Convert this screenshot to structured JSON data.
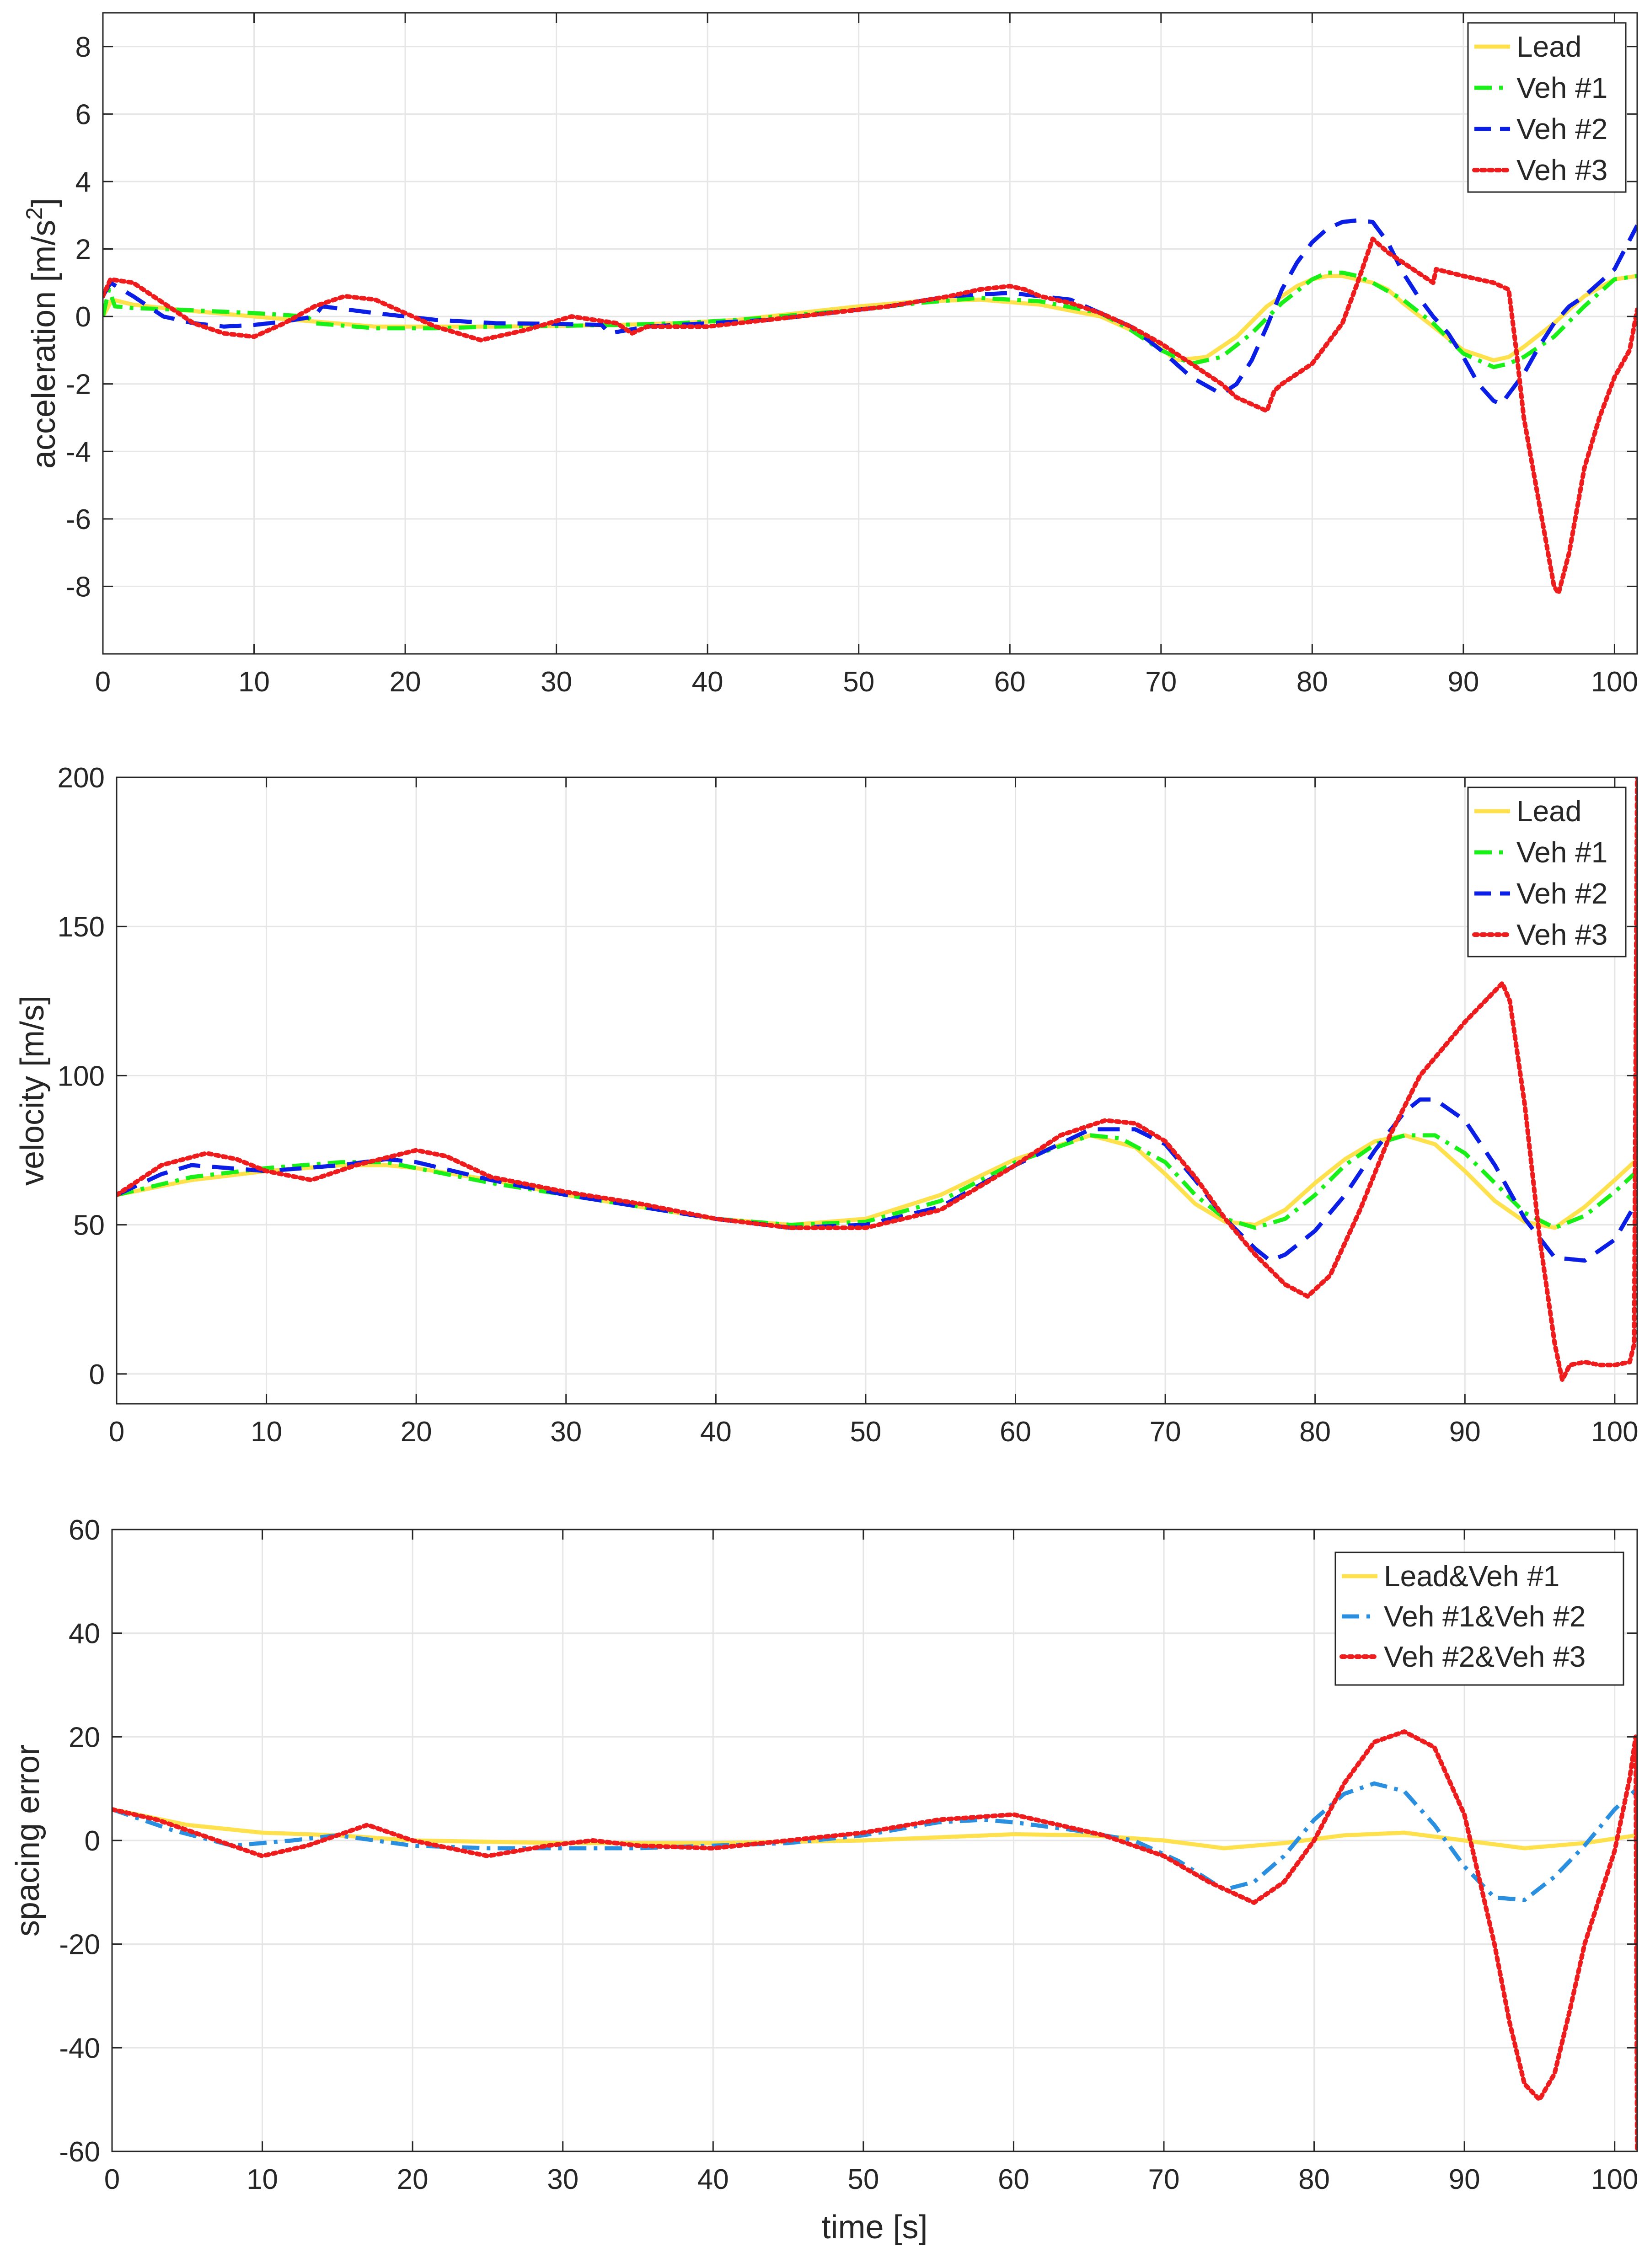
{
  "chart_data": [
    {
      "type": "line",
      "id": "acc",
      "ylabel": "acceleration [m/s²]",
      "ylabel_parts": {
        "base": "acceleration [m/s",
        "sup": "2",
        "close": "]"
      },
      "xlabel": "",
      "xlim": [
        0,
        101.5
      ],
      "ylim": [
        -10,
        9
      ],
      "grid": true,
      "legend_position": "top-right",
      "xticks": [
        0,
        10,
        20,
        30,
        40,
        50,
        60,
        70,
        80,
        90,
        100
      ],
      "yticks": [
        8,
        6,
        4,
        2,
        0,
        -2,
        -4,
        -6,
        -8
      ],
      "series": [
        {
          "name": "Lead",
          "color": "#ffe14d",
          "dash": "solid",
          "x": [
            0,
            0.6,
            2,
            5,
            10,
            14,
            18,
            22,
            26,
            30,
            34,
            38,
            42,
            46,
            50,
            54,
            58,
            62,
            66,
            69,
            71,
            73,
            75,
            77,
            79,
            80,
            81,
            82,
            83,
            84,
            85,
            86,
            88,
            90,
            92,
            93,
            94,
            96,
            98,
            100,
            101.5
          ],
          "y": [
            0,
            0.5,
            0.35,
            0.2,
            0.0,
            -0.15,
            -0.3,
            -0.3,
            -0.3,
            -0.28,
            -0.25,
            -0.2,
            -0.1,
            0.1,
            0.3,
            0.45,
            0.5,
            0.35,
            0.0,
            -0.6,
            -1.3,
            -1.2,
            -0.6,
            0.3,
            0.9,
            1.1,
            1.2,
            1.2,
            1.1,
            1.0,
            0.8,
            0.4,
            -0.3,
            -1.0,
            -1.3,
            -1.2,
            -0.9,
            -0.2,
            0.6,
            1.1,
            1.2
          ]
        },
        {
          "name": "Veh #1",
          "color": "#18f018",
          "dash": "dashdot",
          "x": [
            0,
            0.4,
            0.8,
            2,
            5,
            10,
            13.5,
            14,
            18,
            22,
            26,
            30,
            34,
            38,
            42,
            46,
            50,
            54,
            58,
            62,
            66,
            68,
            70,
            72,
            74,
            76,
            78,
            80,
            81,
            82,
            83,
            84,
            86,
            88,
            90,
            92,
            93,
            94,
            96,
            98,
            100,
            101.5
          ],
          "y": [
            0,
            0.8,
            0.3,
            0.25,
            0.2,
            0.1,
            0.0,
            -0.2,
            -0.35,
            -0.35,
            -0.3,
            -0.28,
            -0.25,
            -0.2,
            -0.1,
            0.05,
            0.2,
            0.4,
            0.55,
            0.45,
            0.1,
            -0.4,
            -1.0,
            -1.4,
            -1.2,
            -0.5,
            0.4,
            1.1,
            1.3,
            1.3,
            1.2,
            1.0,
            0.5,
            -0.2,
            -1.1,
            -1.5,
            -1.4,
            -1.2,
            -0.6,
            0.3,
            1.1,
            1.2
          ]
        },
        {
          "name": "Veh #2",
          "color": "#0a1ee6",
          "dash": "dashed",
          "x": [
            0,
            0.5,
            2,
            4,
            6,
            8,
            10,
            12,
            14,
            14.5,
            18,
            22,
            26,
            30,
            33,
            33.5,
            36,
            40,
            44,
            48,
            52,
            56,
            60,
            64,
            66,
            68,
            70,
            72,
            74,
            75,
            76,
            77,
            78,
            79,
            80,
            81,
            82,
            83,
            84,
            85,
            86,
            87,
            88,
            89,
            90,
            91,
            92,
            92.5,
            93,
            94,
            95,
            96,
            97,
            98,
            100,
            101.5
          ],
          "y": [
            0.6,
            1.0,
            0.6,
            0.0,
            -0.2,
            -0.3,
            -0.25,
            -0.15,
            0.0,
            0.3,
            0.1,
            -0.1,
            -0.2,
            -0.22,
            -0.25,
            -0.5,
            -0.3,
            -0.2,
            -0.1,
            0.1,
            0.3,
            0.6,
            0.7,
            0.5,
            0.1,
            -0.3,
            -1.0,
            -1.8,
            -2.3,
            -2.0,
            -1.3,
            -0.3,
            0.8,
            1.6,
            2.2,
            2.6,
            2.8,
            2.85,
            2.8,
            2.2,
            1.3,
            0.6,
            0.0,
            -0.5,
            -1.2,
            -2.0,
            -2.5,
            -2.6,
            -2.3,
            -1.7,
            -0.9,
            -0.2,
            0.3,
            0.6,
            1.4,
            2.7
          ]
        },
        {
          "name": "Veh #3",
          "color": "#ee1c1c",
          "dash": "dotted",
          "x": [
            0,
            0.5,
            2,
            4,
            6,
            8,
            10,
            12,
            14,
            16,
            18,
            20,
            22,
            25,
            28,
            31,
            34,
            35,
            36,
            40,
            44,
            48,
            52,
            56,
            58,
            60,
            61,
            62,
            64,
            66,
            68,
            70,
            72,
            74,
            75,
            76,
            77,
            77.5,
            78,
            80,
            82,
            83,
            84,
            85,
            86,
            88,
            88.2,
            90,
            92,
            93,
            93.5,
            94,
            95,
            96,
            96.3,
            97,
            98,
            99,
            100,
            101,
            101.5
          ],
          "y": [
            0.6,
            1.1,
            1.0,
            0.4,
            -0.2,
            -0.5,
            -0.6,
            -0.2,
            0.3,
            0.6,
            0.5,
            0.1,
            -0.3,
            -0.7,
            -0.4,
            0.0,
            -0.2,
            -0.5,
            -0.3,
            -0.3,
            -0.1,
            0.1,
            0.3,
            0.6,
            0.8,
            0.9,
            0.8,
            0.6,
            0.4,
            0.1,
            -0.3,
            -0.8,
            -1.4,
            -2.0,
            -2.4,
            -2.6,
            -2.8,
            -2.2,
            -2.0,
            -1.4,
            -0.2,
            1.0,
            2.3,
            1.9,
            1.6,
            1.0,
            1.4,
            1.2,
            1.0,
            0.8,
            -1.0,
            -3.0,
            -5.5,
            -8.0,
            -8.2,
            -7.0,
            -4.5,
            -3.0,
            -1.8,
            -1.0,
            0.2
          ]
        }
      ]
    },
    {
      "type": "line",
      "id": "vel",
      "ylabel": "velocity [m/s]",
      "xlabel": "",
      "xlim": [
        0,
        101.5
      ],
      "ylim": [
        -10,
        200
      ],
      "grid": true,
      "legend_position": "top-right",
      "xticks": [
        0,
        10,
        20,
        30,
        40,
        50,
        60,
        70,
        80,
        90,
        100
      ],
      "yticks": [
        200,
        150,
        100,
        50,
        0
      ],
      "series": [
        {
          "name": "Lead",
          "color": "#ffe14d",
          "dash": "solid",
          "x": [
            0,
            5,
            10,
            15,
            18,
            20,
            25,
            30,
            35,
            40,
            45,
            50,
            55,
            60,
            65,
            68,
            70,
            72,
            74,
            76,
            78,
            80,
            82,
            84,
            86,
            88,
            90,
            92,
            94,
            96,
            98,
            100,
            101.5
          ],
          "y": [
            60,
            65,
            68,
            70,
            70,
            69,
            65,
            60,
            56,
            52,
            50,
            52,
            60,
            72,
            80,
            76,
            67,
            57,
            51,
            50,
            55,
            64,
            72,
            78,
            80,
            77,
            68,
            58,
            51,
            49,
            56,
            65,
            72
          ]
        },
        {
          "name": "Veh #1",
          "color": "#18f018",
          "dash": "dashdot",
          "x": [
            0,
            5,
            10,
            15,
            18,
            20,
            25,
            30,
            35,
            40,
            45,
            50,
            55,
            60,
            65,
            67,
            70,
            72,
            74,
            76,
            78,
            80,
            82,
            84,
            86,
            88,
            90,
            92,
            94,
            96,
            98,
            100,
            101.5
          ],
          "y": [
            60,
            66,
            69,
            71,
            71,
            69,
            64,
            60,
            56,
            52,
            50,
            51,
            58,
            71,
            80,
            79,
            71,
            60,
            52,
            49,
            52,
            60,
            70,
            77,
            80,
            80,
            74,
            64,
            54,
            49,
            53,
            61,
            68
          ]
        },
        {
          "name": "Veh #2",
          "color": "#0a1ee6",
          "dash": "dashed",
          "x": [
            0,
            3,
            5,
            10,
            15,
            18,
            20,
            25,
            30,
            35,
            40,
            45,
            50,
            55,
            60,
            65,
            68,
            70,
            72,
            74,
            76,
            77,
            78,
            80,
            82,
            84,
            86,
            87,
            88,
            90,
            92,
            94,
            96,
            98,
            100,
            101.5
          ],
          "y": [
            60,
            67,
            70,
            68,
            70,
            72,
            71,
            65,
            60,
            56,
            52,
            49,
            50,
            56,
            70,
            82,
            82,
            77,
            65,
            52,
            42,
            38,
            40,
            48,
            60,
            75,
            88,
            92,
            92,
            85,
            70,
            52,
            39,
            38,
            45,
            58
          ]
        },
        {
          "name": "Veh #3",
          "color": "#ee1c1c",
          "dash": "dotted",
          "x": [
            0,
            3,
            6,
            8,
            10,
            13,
            16,
            20,
            22,
            25,
            30,
            35,
            40,
            45,
            50,
            55,
            60,
            63,
            66,
            68,
            70,
            72,
            74,
            76,
            78,
            79.5,
            81,
            83,
            85,
            87,
            90,
            92.5,
            93,
            94,
            95,
            96,
            96.5,
            97,
            98,
            99,
            100,
            101,
            101.3,
            101.5
          ],
          "y": [
            60,
            70,
            74,
            72,
            68,
            65,
            70,
            75,
            73,
            66,
            61,
            57,
            52,
            49,
            49,
            55,
            70,
            80,
            85,
            84,
            78,
            66,
            52,
            40,
            30,
            26,
            33,
            55,
            80,
            100,
            118,
            131,
            125,
            90,
            45,
            10,
            -2,
            3,
            4,
            3,
            3,
            4,
            10,
            200
          ]
        }
      ]
    },
    {
      "type": "line",
      "id": "spacing",
      "ylabel": "spacing error",
      "xlabel": "time [s]",
      "xlim": [
        0,
        101.5
      ],
      "ylim": [
        -60,
        60
      ],
      "grid": true,
      "legend_position": "top-right",
      "xticks": [
        0,
        10,
        20,
        30,
        40,
        50,
        60,
        70,
        80,
        90,
        100
      ],
      "yticks": [
        60,
        40,
        20,
        0,
        -20,
        -40,
        -60
      ],
      "series": [
        {
          "name": "Lead&Veh #1",
          "color": "#ffe14d",
          "dash": "solid",
          "x": [
            0,
            5,
            10,
            15,
            20,
            30,
            40,
            50,
            60,
            65,
            70,
            74,
            78,
            82,
            86,
            90,
            94,
            98,
            101.5
          ],
          "y": [
            6,
            3,
            1.5,
            1,
            0,
            -0.5,
            -0.5,
            0,
            1.2,
            1,
            0,
            -1.5,
            -0.5,
            1,
            1.5,
            0,
            -1.5,
            -0.5,
            1
          ]
        },
        {
          "name": "Veh #1&Veh #2",
          "color": "#2b8fe0",
          "dash": "dashdot",
          "x": [
            0,
            4,
            8,
            12,
            15,
            20,
            25,
            30,
            35,
            40,
            45,
            50,
            55,
            58,
            60,
            64,
            68,
            71,
            74,
            76,
            78,
            80,
            82,
            84,
            86,
            88,
            90,
            92,
            94,
            96,
            98,
            100,
            101.5
          ],
          "y": [
            6,
            2,
            -1,
            0,
            1,
            -1,
            -1.5,
            -1.5,
            -1.5,
            -1,
            -0.5,
            1,
            3.5,
            4,
            3.5,
            2,
            0,
            -4,
            -9.5,
            -8,
            -3,
            4,
            9,
            11,
            9.5,
            3,
            -5,
            -11,
            -11.5,
            -7,
            -1,
            6,
            10
          ]
        },
        {
          "name": "Veh #2&Veh #3",
          "color": "#ee1c1c",
          "dash": "dotted",
          "x": [
            0,
            3,
            6,
            10,
            13,
            17,
            20,
            25,
            29,
            32,
            35,
            40,
            45,
            50,
            55,
            60,
            63,
            66,
            70,
            73,
            76,
            78,
            80,
            82,
            84,
            86,
            88,
            90,
            92,
            93,
            94,
            95,
            96,
            97,
            98,
            100,
            101,
            101.4,
            101.5
          ],
          "y": [
            6,
            4,
            1,
            -3,
            -1,
            3,
            0,
            -3,
            -1,
            0,
            -1,
            -1.5,
            0,
            1.5,
            4,
            5,
            3,
            1,
            -3,
            -8,
            -12,
            -8,
            0,
            11,
            19,
            21,
            18,
            5,
            -20,
            -35,
            -47,
            -50,
            -45,
            -33,
            -20,
            -2,
            12,
            20,
            -60
          ]
        }
      ]
    }
  ]
}
